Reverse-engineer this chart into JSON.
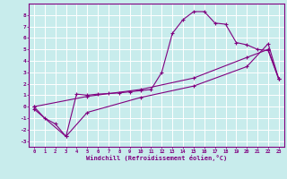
{
  "background_color": "#c8ecec",
  "grid_color": "#aadddd",
  "line_color": "#800080",
  "xlabel": "Windchill (Refroidissement éolien,°C)",
  "xlim": [
    -0.5,
    23.5
  ],
  "ylim": [
    -3.5,
    9.0
  ],
  "xticks": [
    0,
    1,
    2,
    3,
    4,
    5,
    6,
    7,
    8,
    9,
    10,
    11,
    12,
    13,
    14,
    15,
    16,
    17,
    18,
    19,
    20,
    21,
    22,
    23
  ],
  "yticks": [
    -3,
    -2,
    -1,
    0,
    1,
    2,
    3,
    4,
    5,
    6,
    7,
    8
  ],
  "line1_x": [
    0,
    1,
    2,
    3,
    4,
    5,
    6,
    7,
    8,
    9,
    10,
    11,
    12,
    13,
    14,
    15,
    16,
    17,
    18,
    19,
    20,
    21,
    22,
    23
  ],
  "line1_y": [
    0.0,
    -1.0,
    -1.5,
    -2.6,
    1.1,
    1.0,
    1.1,
    1.15,
    1.2,
    1.3,
    1.4,
    1.5,
    3.0,
    6.4,
    7.6,
    8.3,
    8.3,
    7.3,
    7.2,
    5.6,
    5.4,
    5.0,
    4.9,
    2.4
  ],
  "line2_x": [
    0,
    5,
    10,
    15,
    20,
    22,
    23
  ],
  "line2_y": [
    0.0,
    0.9,
    1.5,
    2.5,
    4.3,
    5.0,
    2.4
  ],
  "line3_x": [
    0,
    3,
    5,
    10,
    15,
    20,
    22,
    23
  ],
  "line3_y": [
    -0.2,
    -2.6,
    -0.5,
    0.8,
    1.8,
    3.5,
    5.5,
    2.4
  ]
}
